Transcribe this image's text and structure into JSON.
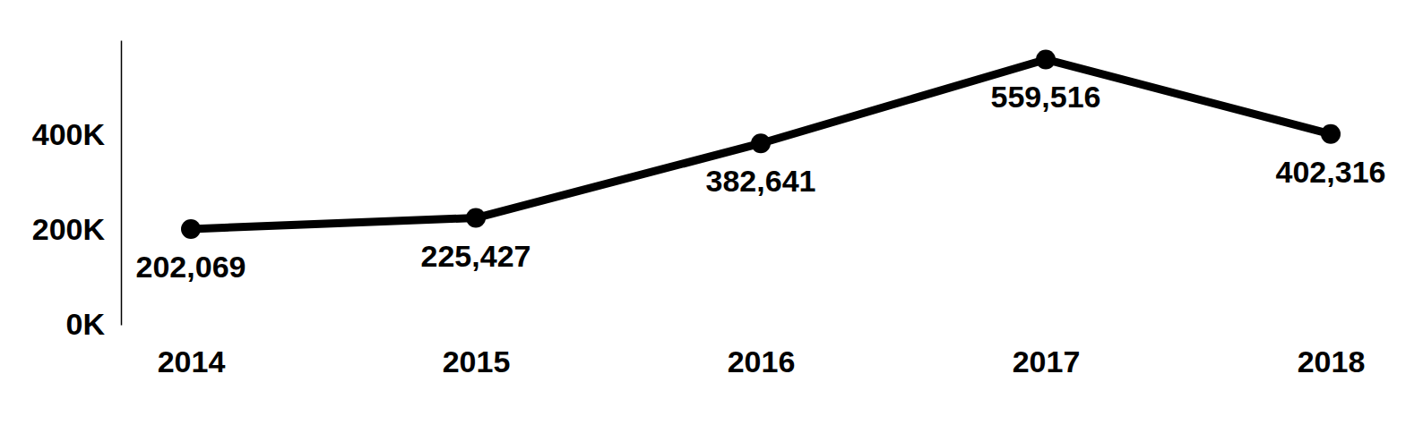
{
  "chart_data": {
    "type": "line",
    "categories": [
      "2014",
      "2015",
      "2016",
      "2017",
      "2018"
    ],
    "values": [
      202069,
      225427,
      382641,
      559516,
      402316
    ],
    "value_labels": [
      "202,069",
      "225,427",
      "382,641",
      "559,516",
      "402,316"
    ],
    "color": "#000000",
    "marker": "circle",
    "data_labels": true,
    "grid": false,
    "ylim": [
      0,
      600000
    ],
    "yticks": [
      {
        "value": 0,
        "label": "0K"
      },
      {
        "value": 200000,
        "label": "200K"
      },
      {
        "value": 400000,
        "label": "400K"
      }
    ]
  }
}
